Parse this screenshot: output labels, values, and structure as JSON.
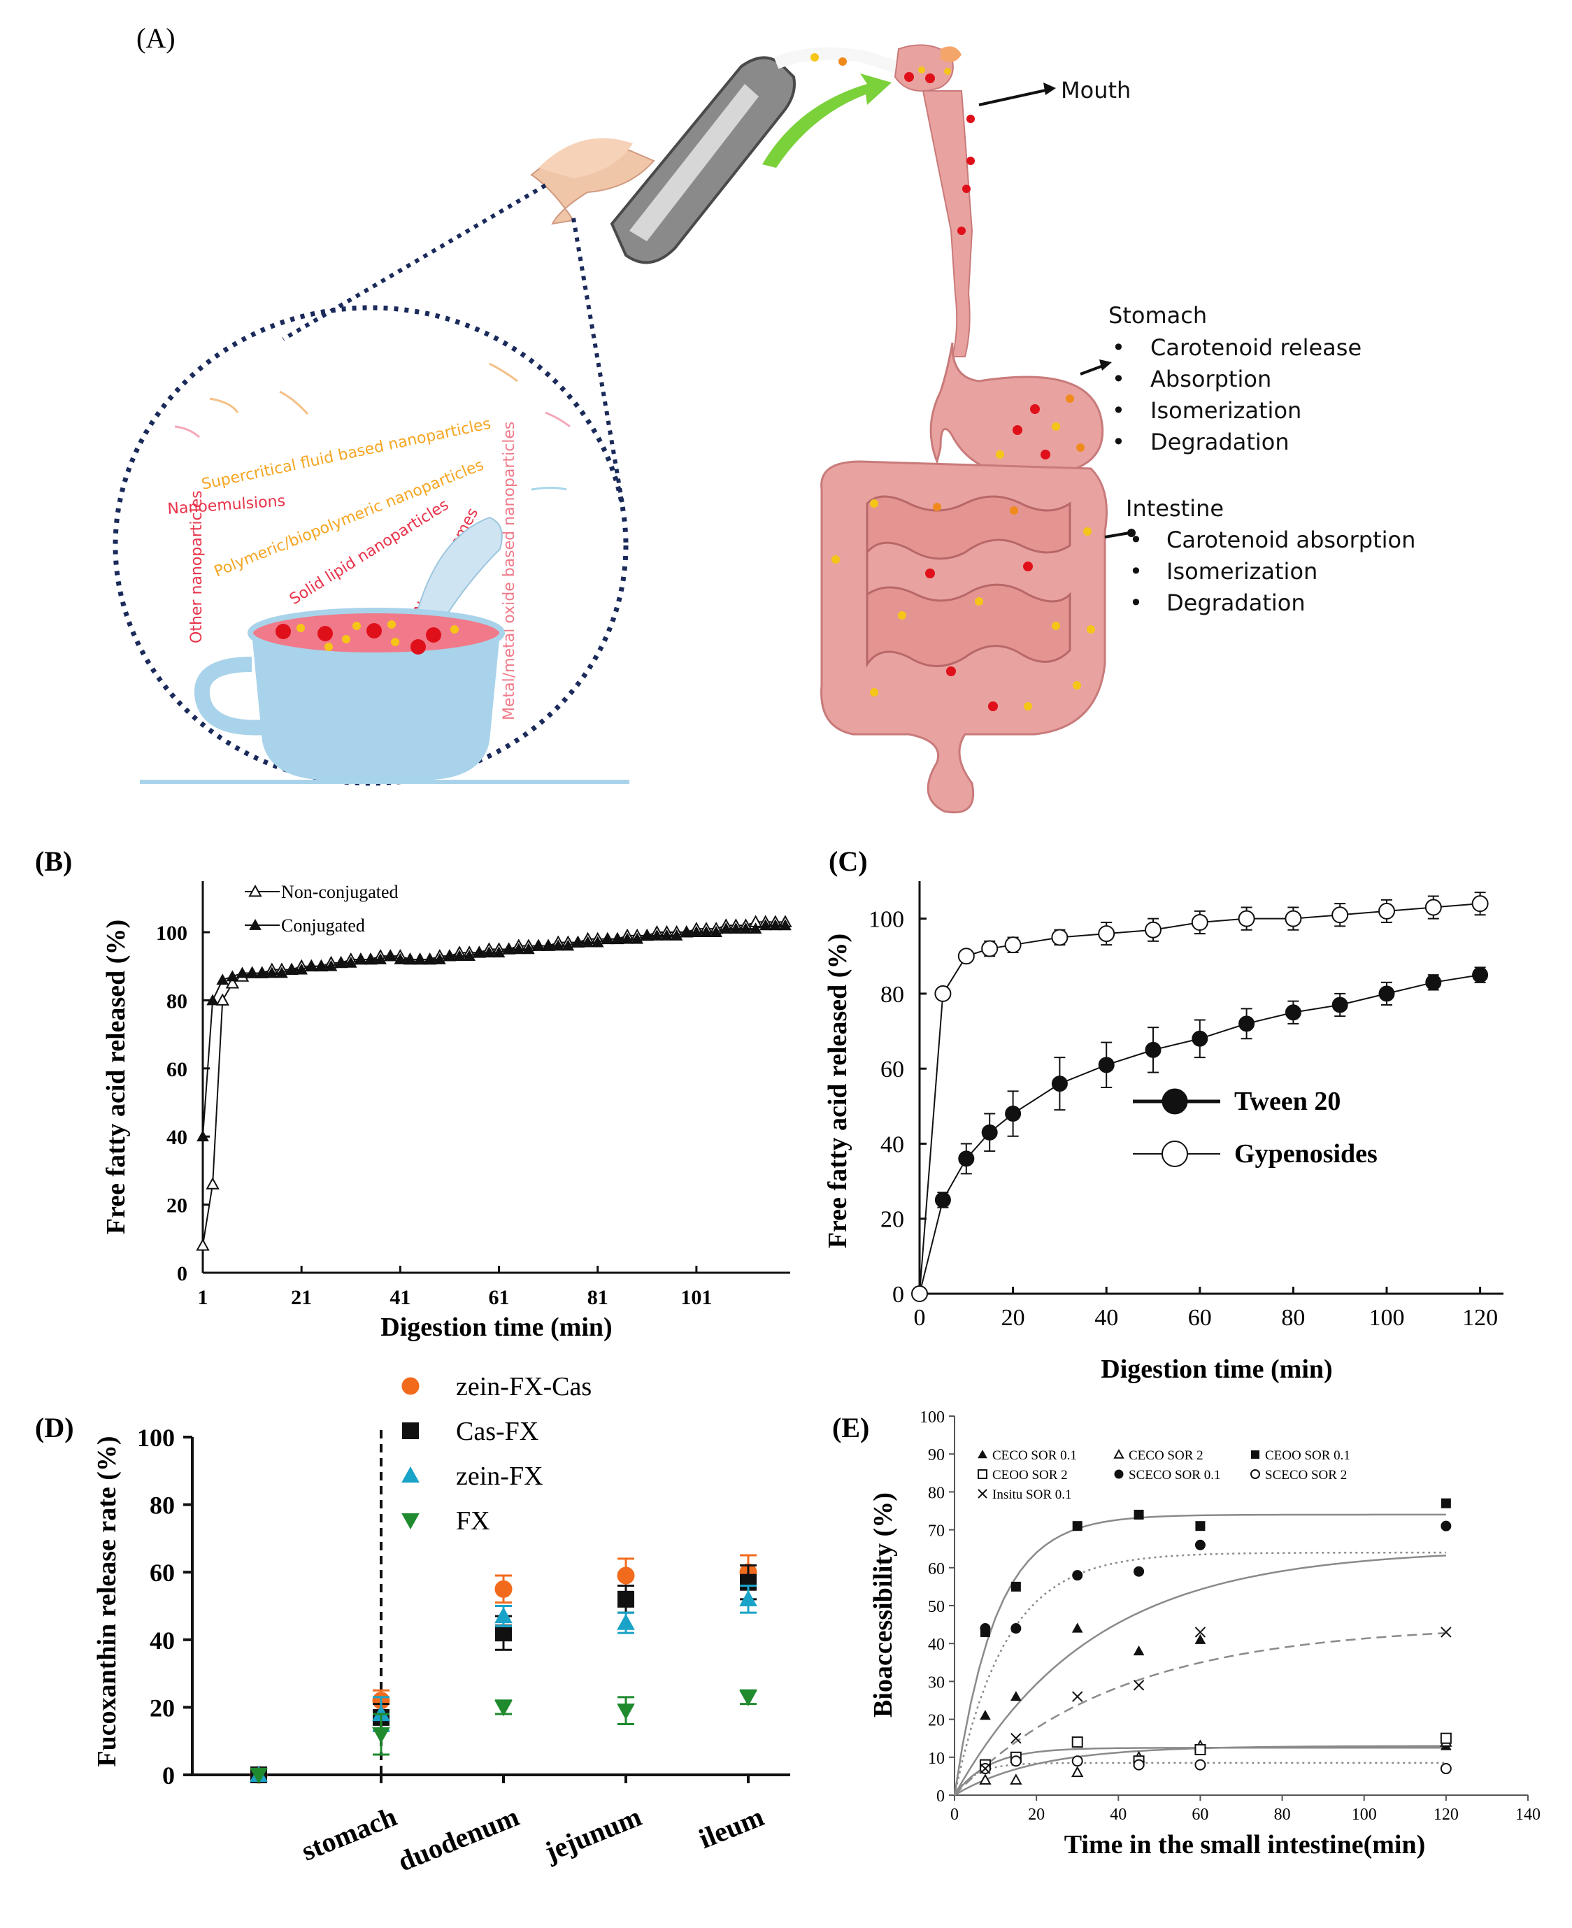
{
  "figure": {
    "panel_labels": {
      "A": "(A)",
      "B": "(B)",
      "C": "(C)",
      "D": "(D)",
      "E": "(E)"
    }
  },
  "illustration": {
    "nano_types": [
      "Supercritical fluid based nanoparticles",
      "Nanoemulsions",
      "Polymeric/biopolymeric nanoparticles",
      "Solid lipid nanoparticles",
      "Nanoliposomes",
      "Other nanoparticles",
      "Metal/metal oxide based nanoparticles"
    ],
    "mouth_label": "Mouth",
    "stomach": {
      "title": "Stomach",
      "items": [
        "Carotenoid release",
        "Absorption",
        "Isomerization",
        "Degradation"
      ]
    },
    "intestine": {
      "title": "Intestine",
      "items": [
        "Carotenoid absorption",
        "Isomerization",
        "Degradation"
      ]
    },
    "colors": {
      "skin": "#e8a3a0",
      "skin_dark": "#c97a7a",
      "red_dot": "#e0101a",
      "yellow_dot": "#f5c518",
      "orange_dot": "#f08a1c",
      "cup": "#a9d3ea",
      "soup": "#f07a8a",
      "dotted_circle": "#1a2a5a",
      "arrow_green": "#7bd13a"
    }
  },
  "chart_data": [
    {
      "id": "B",
      "type": "line",
      "xlabel": "Digestion time (min)",
      "ylabel": "Free fatty acid released (%)",
      "xticks": [
        1,
        21,
        41,
        61,
        81,
        101
      ],
      "yticks": [
        0,
        20,
        40,
        60,
        80,
        100
      ],
      "xlim": [
        1,
        120
      ],
      "ylim": [
        0,
        115
      ],
      "series": [
        {
          "name": "Non-conjugated",
          "marker": "open-triangle",
          "x": [
            1,
            3,
            5,
            7,
            9,
            11,
            13,
            15,
            17,
            19,
            21,
            23,
            25,
            27,
            29,
            31,
            33,
            35,
            37,
            39,
            41,
            43,
            45,
            47,
            49,
            51,
            53,
            55,
            57,
            59,
            61,
            63,
            65,
            67,
            69,
            71,
            73,
            75,
            77,
            79,
            81,
            83,
            85,
            87,
            89,
            91,
            93,
            95,
            97,
            99,
            101,
            103,
            105,
            107,
            109,
            111,
            113,
            115,
            117,
            119
          ],
          "y": [
            8,
            26,
            80,
            85,
            87,
            88,
            88,
            89,
            89,
            89,
            90,
            90,
            90,
            91,
            91,
            92,
            92,
            92,
            93,
            93,
            93,
            92,
            92,
            92,
            93,
            93,
            94,
            94,
            94,
            95,
            95,
            95,
            96,
            96,
            96,
            96,
            97,
            97,
            97,
            98,
            98,
            98,
            98,
            99,
            99,
            99,
            100,
            100,
            100,
            100,
            101,
            101,
            101,
            102,
            102,
            102,
            103,
            103,
            103,
            103
          ]
        },
        {
          "name": "Conjugated",
          "marker": "filled-triangle",
          "x": [
            1,
            3,
            5,
            7,
            9,
            11,
            13,
            15,
            17,
            19,
            21,
            23,
            25,
            27,
            29,
            31,
            33,
            35,
            37,
            39,
            41,
            43,
            45,
            47,
            49,
            51,
            53,
            55,
            57,
            59,
            61,
            63,
            65,
            67,
            69,
            71,
            73,
            75,
            77,
            79,
            81,
            83,
            85,
            87,
            89,
            91,
            93,
            95,
            97,
            99,
            101,
            103,
            105,
            107,
            109,
            111,
            113,
            115,
            117,
            119
          ],
          "y": [
            40,
            80,
            86,
            87,
            88,
            88,
            88,
            88,
            88,
            89,
            89,
            90,
            90,
            90,
            91,
            91,
            92,
            92,
            92,
            93,
            92,
            92,
            92,
            92,
            92,
            93,
            93,
            93,
            94,
            94,
            94,
            95,
            95,
            95,
            96,
            96,
            96,
            96,
            97,
            97,
            97,
            98,
            98,
            98,
            98,
            99,
            99,
            99,
            99,
            100,
            100,
            100,
            100,
            101,
            101,
            101,
            101,
            102,
            102,
            102
          ]
        }
      ]
    },
    {
      "id": "C",
      "type": "line",
      "xlabel": "Digestion time (min)",
      "ylabel": "Free fatty acid released (%)",
      "xticks": [
        0,
        20,
        40,
        60,
        80,
        100,
        120
      ],
      "yticks": [
        0,
        20,
        40,
        60,
        80,
        100
      ],
      "xlim": [
        0,
        125
      ],
      "ylim": [
        0,
        110
      ],
      "series": [
        {
          "name": "Tween 20",
          "marker": "filled-circle",
          "x": [
            0,
            5,
            10,
            15,
            20,
            30,
            40,
            50,
            60,
            70,
            80,
            90,
            100,
            110,
            120
          ],
          "y": [
            0,
            25,
            36,
            43,
            48,
            56,
            61,
            65,
            68,
            72,
            75,
            77,
            80,
            83,
            85
          ],
          "err": [
            0,
            2,
            4,
            5,
            6,
            7,
            6,
            6,
            5,
            4,
            3,
            3,
            3,
            2,
            2
          ]
        },
        {
          "name": "Gypenosides",
          "marker": "open-circle",
          "x": [
            0,
            5,
            10,
            15,
            20,
            30,
            40,
            50,
            60,
            70,
            80,
            90,
            100,
            110,
            120
          ],
          "y": [
            0,
            80,
            90,
            92,
            93,
            95,
            96,
            97,
            99,
            100,
            100,
            101,
            102,
            103,
            104
          ],
          "err": [
            0,
            1,
            1,
            2,
            2,
            2,
            3,
            3,
            3,
            3,
            3,
            3,
            3,
            3,
            3
          ]
        }
      ]
    },
    {
      "id": "D",
      "type": "scatter",
      "xlabel": "",
      "ylabel": "Fucoxanthin release rate (%)",
      "categories": [
        "",
        "stomach",
        "duodenum",
        "jejunum",
        "ileum"
      ],
      "category_labels": [
        "stomach",
        "duodenum",
        "jejunum",
        "ileum"
      ],
      "yticks": [
        0,
        20,
        40,
        60,
        80,
        100
      ],
      "ylim": [
        0,
        100
      ],
      "divider": "stomach",
      "series": [
        {
          "name": "zein-FX-Cas",
          "marker": "circle",
          "color": "#f26b1d",
          "values": [
            0,
            22,
            55,
            59,
            60
          ],
          "err": [
            0,
            3,
            4,
            5,
            5
          ]
        },
        {
          "name": "Cas-FX",
          "marker": "square",
          "color": "#111111",
          "values": [
            0,
            17,
            42,
            52,
            57
          ],
          "err": [
            0,
            4,
            5,
            4,
            5
          ]
        },
        {
          "name": "zein-FX",
          "marker": "triangle-up",
          "color": "#1aa3c8",
          "values": [
            0,
            18,
            47,
            45,
            52
          ],
          "err": [
            0,
            5,
            3,
            3,
            4
          ]
        },
        {
          "name": "FX",
          "marker": "triangle-down",
          "color": "#1f8a2e",
          "values": [
            0,
            12,
            20,
            19,
            23
          ],
          "err": [
            0,
            6,
            2,
            4,
            2
          ]
        }
      ]
    },
    {
      "id": "E",
      "type": "scatter",
      "xlabel": "Time in the small intestine(min)",
      "ylabel": "Bioaccessibility (%)",
      "xticks": [
        0,
        20,
        40,
        60,
        80,
        100,
        120,
        140
      ],
      "yticks": [
        0,
        10,
        20,
        30,
        40,
        50,
        60,
        70,
        80,
        90,
        100
      ],
      "xlim": [
        0,
        140
      ],
      "ylim": [
        0,
        100
      ],
      "series": [
        {
          "name": "CECO SOR 0.1",
          "marker": "filled-triangle",
          "x": [
            7.5,
            15,
            30,
            45,
            60,
            120
          ],
          "y": [
            21,
            26,
            44,
            38,
            41,
            13
          ],
          "fit": {
            "a": 65,
            "k": 0.03,
            "style": "solid"
          }
        },
        {
          "name": "CECO SOR 2",
          "marker": "open-triangle",
          "x": [
            7.5,
            15,
            30,
            45,
            60,
            120
          ],
          "y": [
            4,
            4,
            6,
            10,
            13,
            14
          ],
          "fit": {
            "a": 13,
            "k": 0.05,
            "style": "solid"
          }
        },
        {
          "name": "CEOO SOR 0.1",
          "marker": "filled-square",
          "x": [
            7.5,
            15,
            30,
            45,
            60,
            120
          ],
          "y": [
            43,
            55,
            71,
            74,
            71,
            77
          ],
          "fit": {
            "a": 74,
            "k": 0.1,
            "style": "solid"
          }
        },
        {
          "name": "CEOO SOR 2",
          "marker": "open-square",
          "x": [
            7.5,
            15,
            30,
            45,
            60,
            120
          ],
          "y": [
            8,
            10,
            14,
            9,
            12,
            15
          ],
          "fit": {
            "a": 12.5,
            "k": 0.12,
            "style": "solid"
          }
        },
        {
          "name": "SCECO SOR 0.1",
          "marker": "filled-circle",
          "x": [
            7.5,
            15,
            30,
            45,
            60,
            120
          ],
          "y": [
            44,
            44,
            58,
            59,
            66,
            71
          ],
          "fit": {
            "a": 64,
            "k": 0.08,
            "style": "dotted"
          }
        },
        {
          "name": "SCECO SOR 2",
          "marker": "open-circle",
          "x": [
            7.5,
            15,
            30,
            45,
            60,
            120
          ],
          "y": [
            7,
            9,
            9,
            8,
            8,
            7
          ],
          "fit": {
            "a": 8.5,
            "k": 0.2,
            "style": "dotted"
          }
        },
        {
          "name": "Insitu SOR 0.1",
          "marker": "x",
          "x": [
            7.5,
            15,
            30,
            45,
            60,
            120
          ],
          "y": [
            7,
            15,
            26,
            29,
            43,
            43
          ],
          "fit": {
            "a": 45,
            "k": 0.025,
            "style": "dashed"
          }
        }
      ]
    }
  ]
}
